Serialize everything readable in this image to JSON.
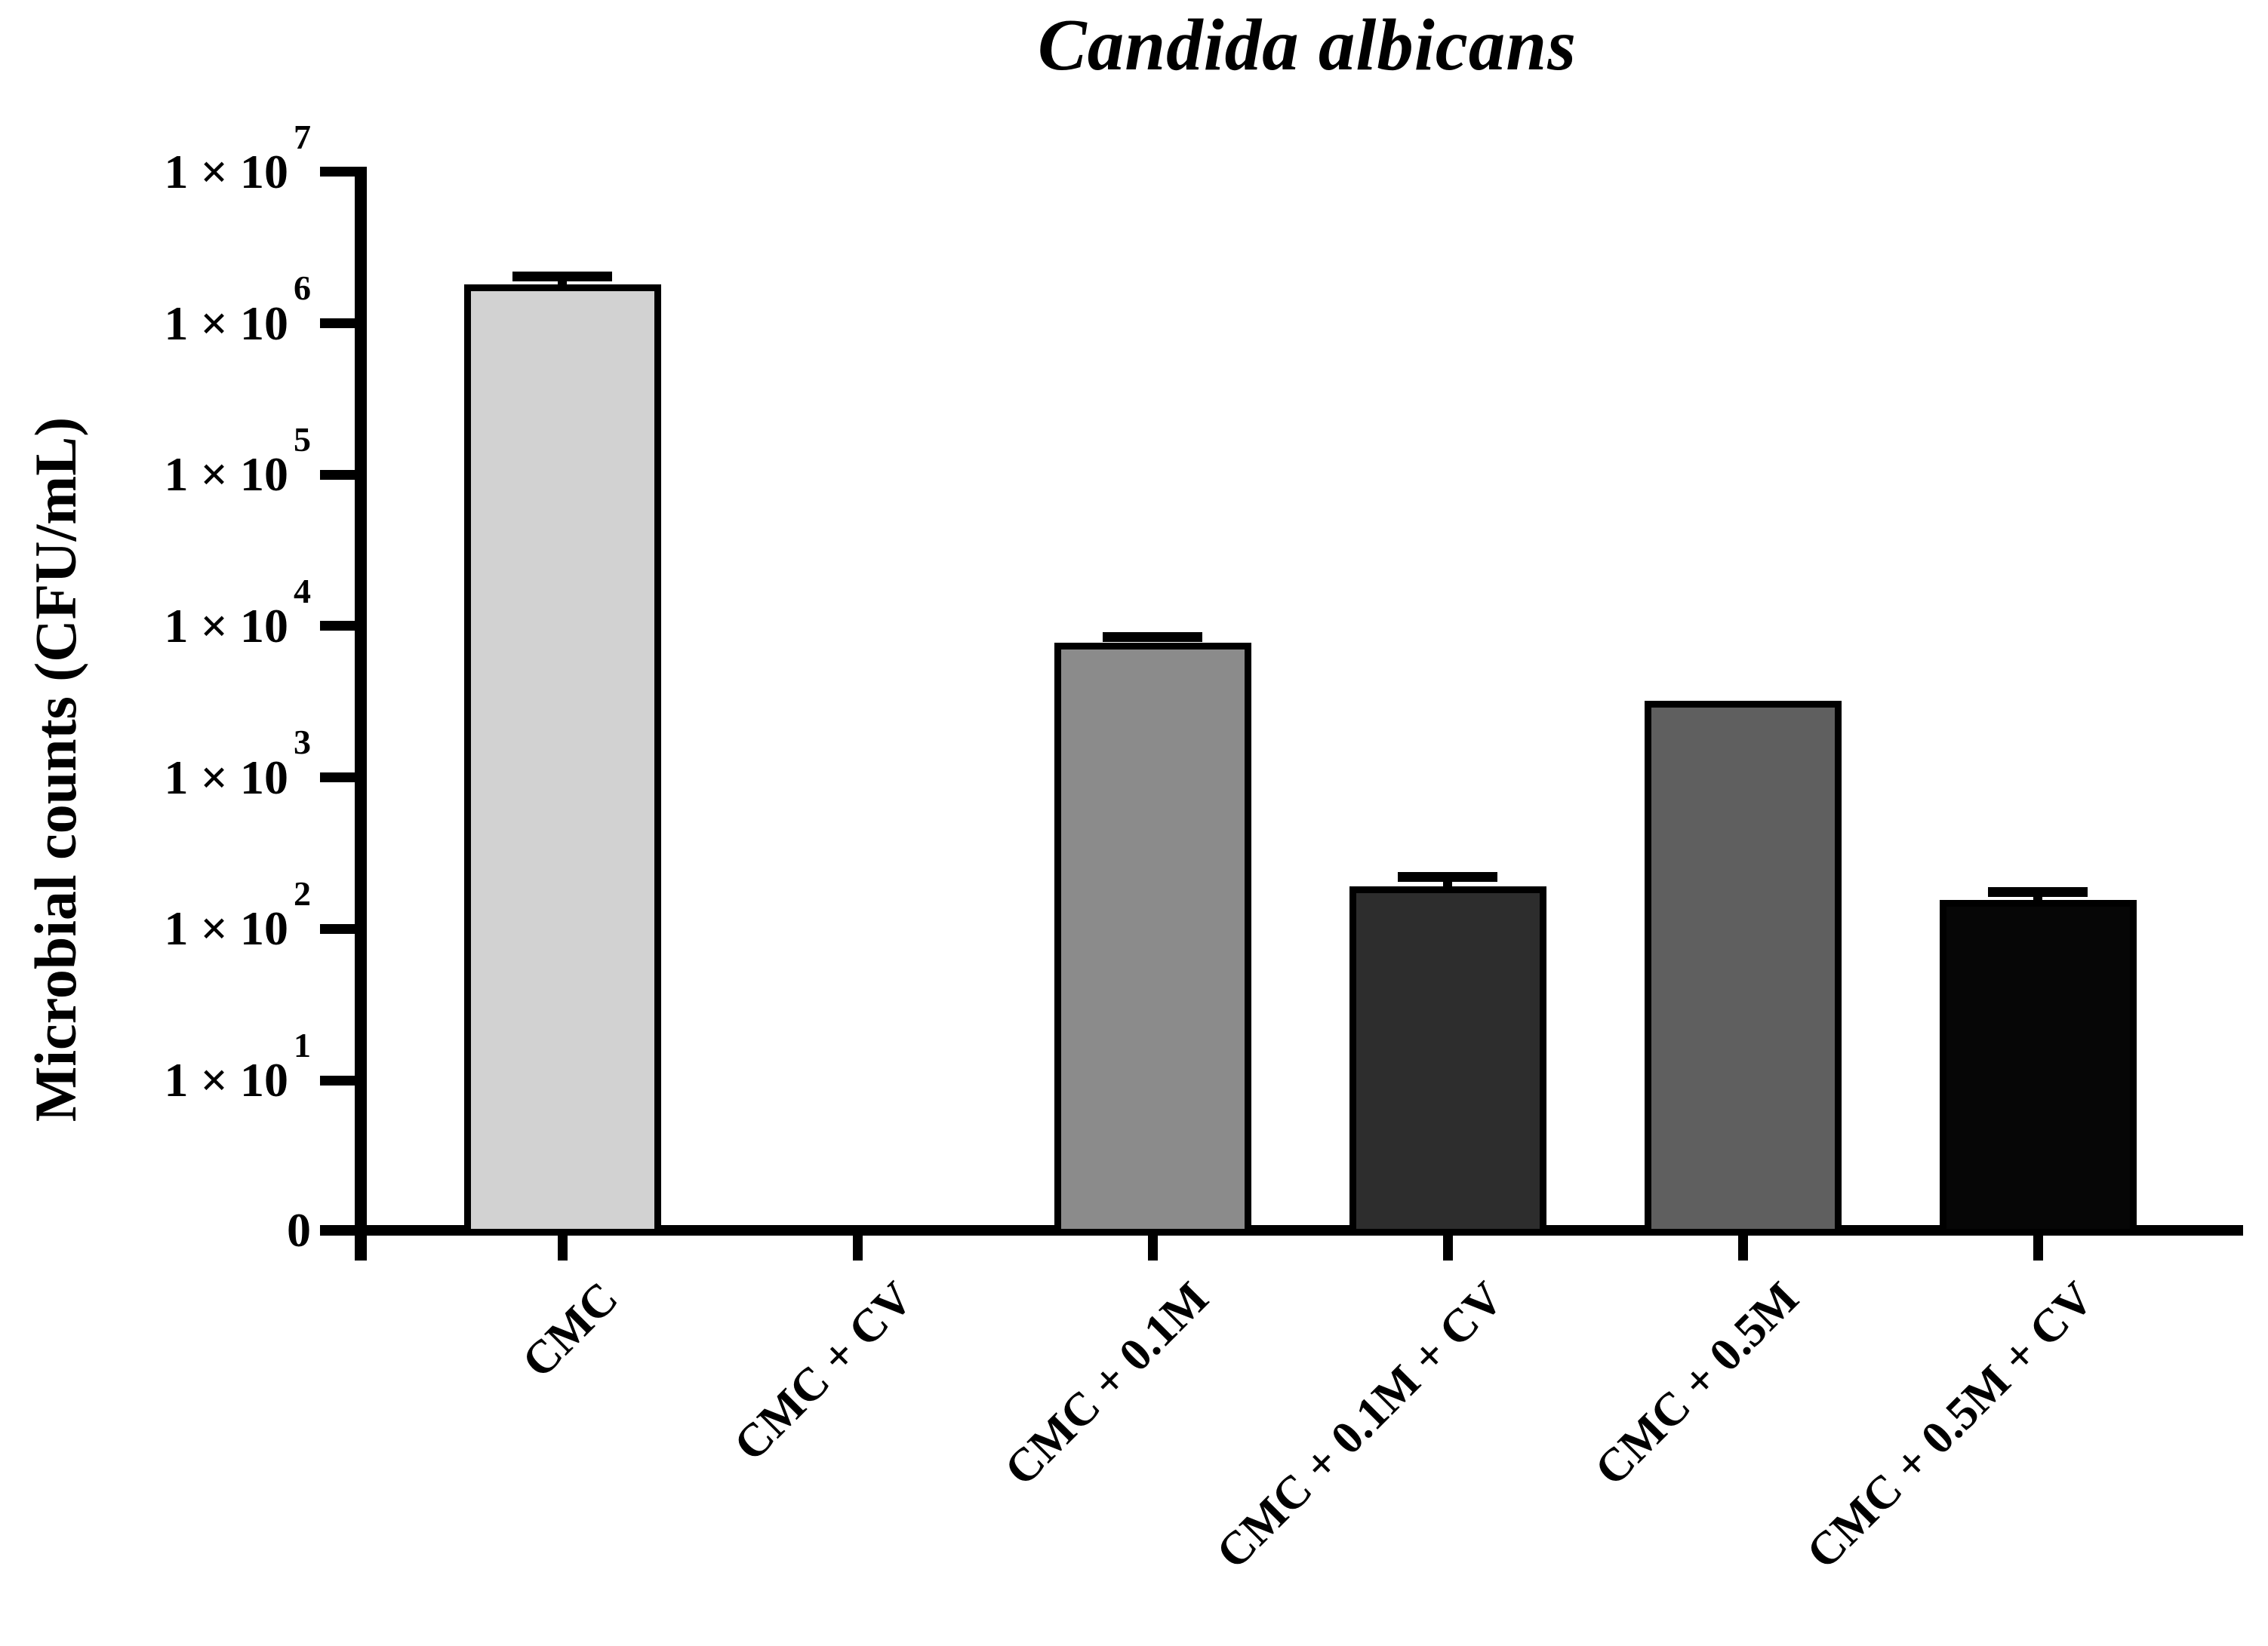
{
  "figure": {
    "title": "Candida albicans"
  },
  "chart_data": {
    "type": "bar",
    "title": "Candida albicans",
    "title_style": "bold italic serif",
    "ylabel": "Microbial counts (CFU/mL)",
    "xlabel": "",
    "y_scale": "log10",
    "grid": false,
    "legend": null,
    "y_axis_ticks_top_to_bottom": [
      "1 × 10⁷",
      "1 × 10⁶",
      "1 × 10⁵",
      "1 × 10⁴",
      "1 × 10³",
      "1 × 10²",
      "1 × 10¹",
      "0"
    ],
    "y_tick_mantissa": "1 × 10",
    "y_tick_exponents": [
      7,
      6,
      5,
      4,
      3,
      2,
      1
    ],
    "y_zero_label": "0",
    "ylim": [
      "0",
      "1 × 10⁷"
    ],
    "categories": [
      "CMC",
      "CMC + CV",
      "CMC + 0.1M",
      "CMC + 0.1M + CV",
      "CMC + 0.5M",
      "CMC + 0.5M + CV"
    ],
    "values": [
      1800000,
      0,
      7800,
      190,
      3200,
      155
    ],
    "error_upper": [
      2050000,
      null,
      8500,
      220,
      null,
      175
    ],
    "bar_colors": [
      "#d2d2d2",
      null,
      "#8b8b8b",
      "#2d2d2d",
      "#5f5f5f",
      "#060606"
    ],
    "bar_border_color": "#000000",
    "axis_color": "#000000"
  }
}
